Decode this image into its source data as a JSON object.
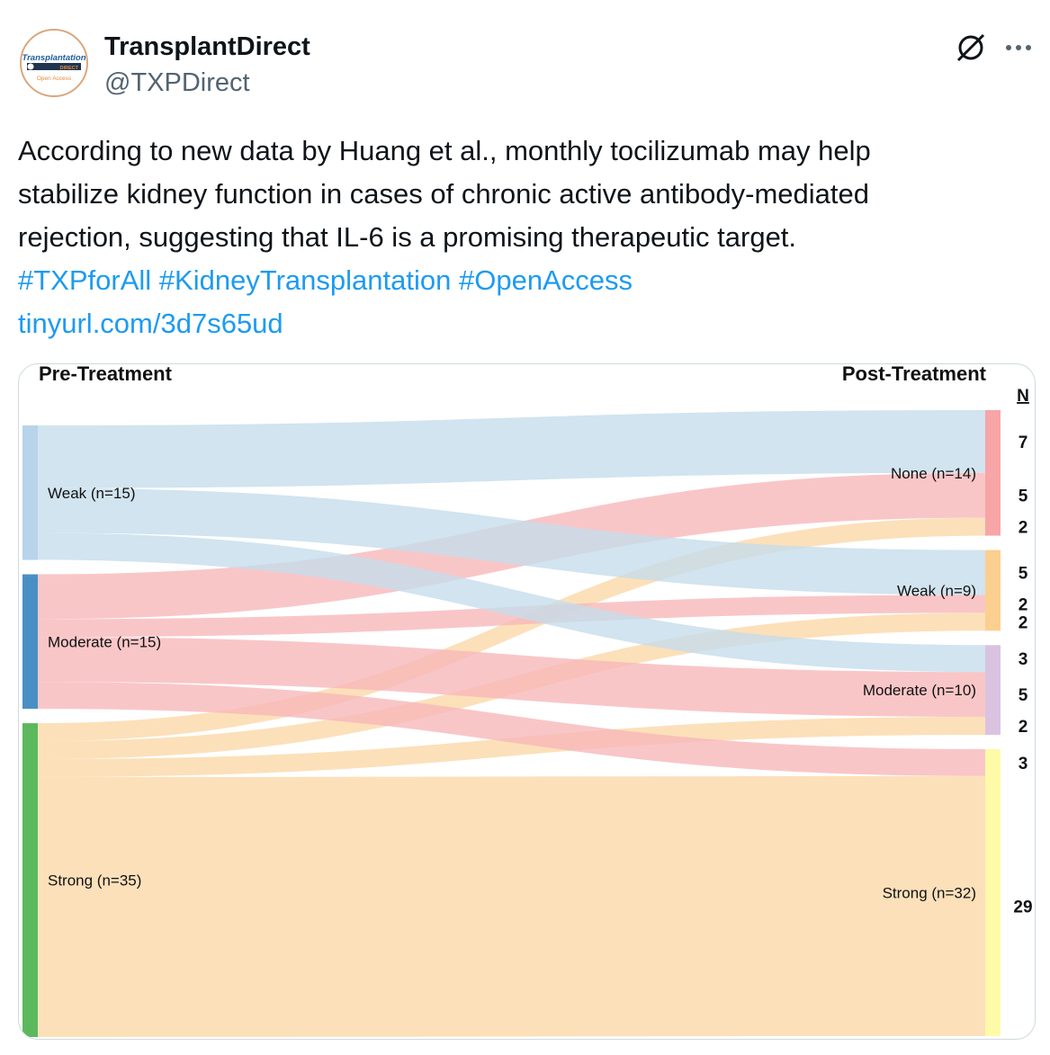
{
  "account": {
    "display_name": "TransplantDirect",
    "handle": "@TXPDirect",
    "avatar": {
      "logo_text": "Transplantation",
      "logo_subtext": "DIRECT",
      "open_access": "Open Access",
      "icon": "journal-logo"
    }
  },
  "actions": {
    "grok_icon": "grok-icon",
    "more_icon": "more-horizontal-icon"
  },
  "tweet": {
    "lines": [
      "According to new data by Huang et al., monthly tocilizumab may help",
      "stabilize kidney function in cases of chronic active antibody-mediated",
      "rejection, suggesting that IL-6 is a promising therapeutic target."
    ],
    "hashtags": [
      "#TXPforAll",
      "#KidneyTransplantation",
      "#OpenAccess"
    ],
    "url": "tinyurl.com/3d7s65ud"
  },
  "colors": {
    "link": "#1d9bf0",
    "weak_flow": "#c4dcea",
    "moderate_flow": "#f7b6b8",
    "strong_flow": "#fbd7a7"
  },
  "chart_data": {
    "type": "sankey",
    "left_title": "Pre-Treatment",
    "right_title": "Post-Treatment",
    "n_header": "N",
    "left_nodes": [
      {
        "id": "weak",
        "label": "Weak (n=15)",
        "value": 15,
        "color": "#b8d4ea"
      },
      {
        "id": "moderate",
        "label": "Moderate (n=15)",
        "value": 15,
        "color": "#4a8fc4"
      },
      {
        "id": "strong",
        "label": "Strong (n=35)",
        "value": 35,
        "color": "#5cb85c"
      }
    ],
    "right_nodes": [
      {
        "id": "none",
        "label": "None (n=14)",
        "value": 14,
        "color": "#f7a5a7"
      },
      {
        "id": "weak",
        "label": "Weak (n=9)",
        "value": 9,
        "color": "#fbcf8f"
      },
      {
        "id": "moderate",
        "label": "Moderate (n=10)",
        "value": 10,
        "color": "#d9c3e1"
      },
      {
        "id": "strong",
        "label": "Strong (n=32)",
        "value": 32,
        "color": "#fdfaa8"
      }
    ],
    "flows": [
      {
        "from": "weak",
        "to": "none",
        "value": 7
      },
      {
        "from": "moderate",
        "to": "none",
        "value": 5
      },
      {
        "from": "strong",
        "to": "none",
        "value": 2
      },
      {
        "from": "weak",
        "to": "weak",
        "value": 5
      },
      {
        "from": "moderate",
        "to": "weak",
        "value": 2
      },
      {
        "from": "strong",
        "to": "weak",
        "value": 2
      },
      {
        "from": "weak",
        "to": "moderate",
        "value": 3
      },
      {
        "from": "moderate",
        "to": "moderate",
        "value": 5
      },
      {
        "from": "strong",
        "to": "moderate",
        "value": 2
      },
      {
        "from": "moderate",
        "to": "strong",
        "value": 3
      },
      {
        "from": "strong",
        "to": "strong",
        "value": 29
      }
    ],
    "n_labels": [
      "7",
      "5",
      "2",
      "5",
      "2",
      "2",
      "3",
      "5",
      "2",
      "3",
      "29"
    ]
  }
}
